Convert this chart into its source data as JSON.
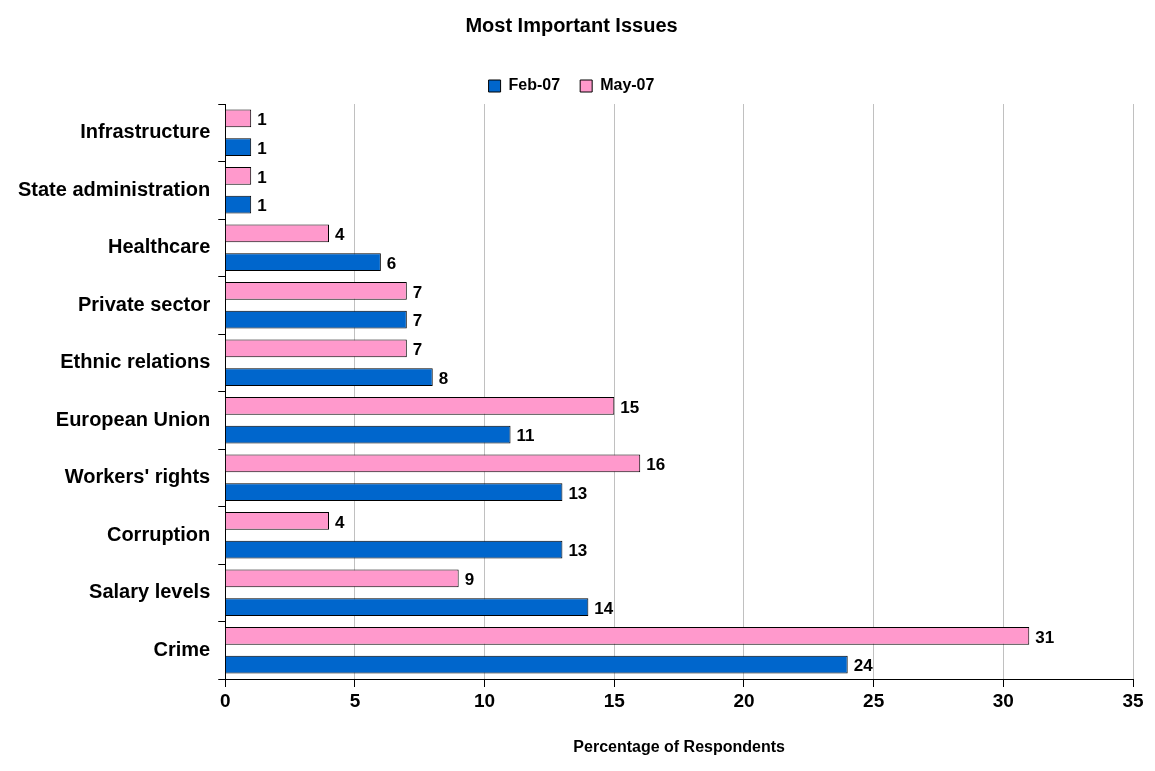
{
  "chart_data": {
    "type": "bar",
    "orientation": "horizontal",
    "title": "Most Important Issues",
    "xlabel": "Percentage of Respondents",
    "categories": [
      "Infrastructure",
      "State administration",
      "Healthcare",
      "Private sector",
      "Ethnic relations",
      "European Union",
      "Workers' rights",
      "Corruption",
      "Salary levels",
      "Crime"
    ],
    "series": [
      {
        "name": "Feb-07",
        "color": "#0066cc",
        "values": [
          1,
          1,
          6,
          7,
          8,
          11,
          13,
          13,
          14,
          24
        ]
      },
      {
        "name": "May-07",
        "color": "#ff99cc",
        "values": [
          1,
          1,
          4,
          7,
          7,
          15,
          16,
          4,
          9,
          31
        ]
      }
    ],
    "xlim": [
      0,
      35
    ],
    "xticks": [
      0,
      5,
      10,
      15,
      20,
      25,
      30,
      35
    ],
    "grid": "x",
    "legend": "top",
    "data_labels": true
  }
}
